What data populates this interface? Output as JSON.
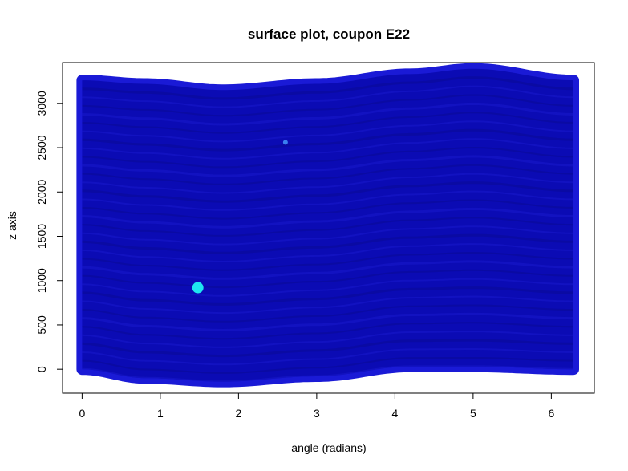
{
  "chart_data": {
    "type": "scatter",
    "title": "surface plot, coupon E22",
    "xlabel": "angle (radians)",
    "ylabel": "z axis",
    "xlim": [
      -0.25,
      6.55
    ],
    "ylim": [
      -270,
      3460
    ],
    "x_ticks": [
      0,
      1,
      2,
      3,
      4,
      5,
      6
    ],
    "y_ticks": [
      0,
      500,
      1000,
      1500,
      2000,
      2500,
      3000
    ],
    "grid": false,
    "legend": "none",
    "colors": {
      "fill": "#0b0bb4",
      "edge": "#1a1ad6",
      "stripe_dark": "#08088f",
      "stripe_light": "#1b1bd0",
      "highlight": "#1ee6f0",
      "mark": "#3a7ff0",
      "frame": "#000000"
    },
    "surface": {
      "x_range": [
        0,
        6.283
      ],
      "bottom_edge": [
        [
          0,
          0
        ],
        [
          0.8,
          -100
        ],
        [
          1.8,
          -140
        ],
        [
          3.0,
          -80
        ],
        [
          4.2,
          30
        ],
        [
          5.0,
          30
        ],
        [
          6.283,
          0
        ]
      ],
      "top_edge": [
        [
          0,
          3260
        ],
        [
          0.8,
          3220
        ],
        [
          1.8,
          3150
        ],
        [
          3.0,
          3220
        ],
        [
          4.2,
          3330
        ],
        [
          5.0,
          3390
        ],
        [
          6.283,
          3260
        ]
      ]
    },
    "highlights": [
      {
        "x": 1.48,
        "y": 920,
        "r": 7
      },
      {
        "x": 2.6,
        "y": 2560,
        "r": 3
      }
    ]
  }
}
